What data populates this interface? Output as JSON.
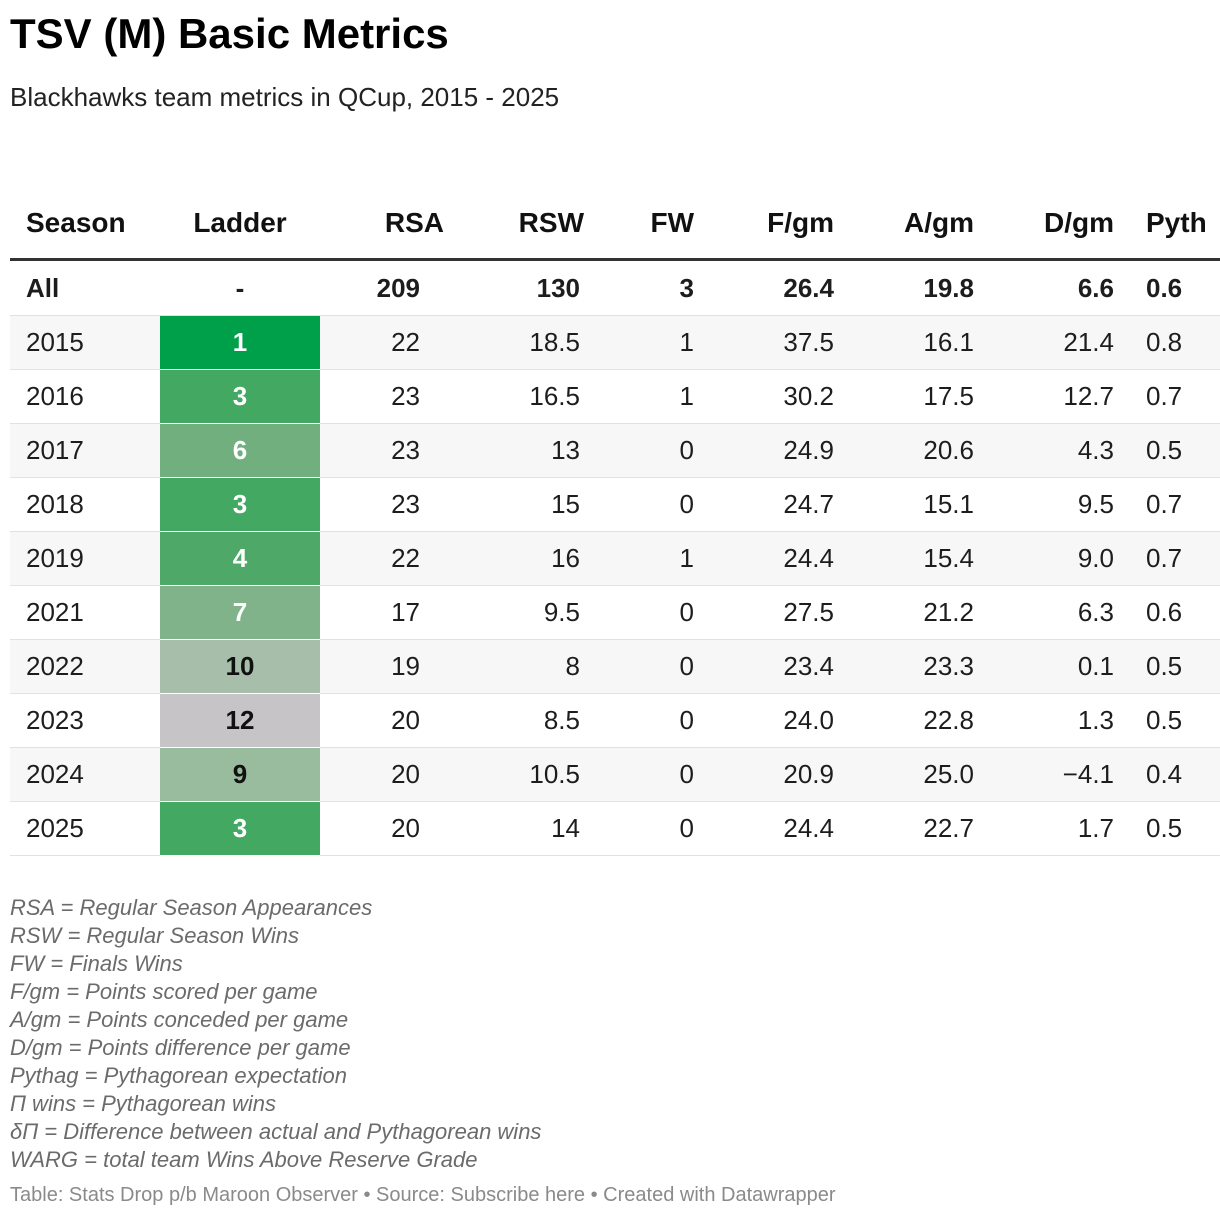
{
  "title": "TSV (M) Basic Metrics",
  "subtitle": "Blackhawks team metrics in QCup, 2015 - 2025",
  "table": {
    "columns": [
      "Season",
      "Ladder",
      "RSA",
      "RSW",
      "FW",
      "F/gm",
      "A/gm",
      "D/gm",
      "Pyth"
    ],
    "all_row": [
      "All",
      "-",
      "209",
      "130",
      "3",
      "26.4",
      "19.8",
      "6.6",
      "0.6"
    ],
    "rows": [
      {
        "season": "2015",
        "ladder": "1",
        "rsa": "22",
        "rsw": "18.5",
        "fw": "1",
        "f": "37.5",
        "a": "16.1",
        "d": "21.4",
        "p": "0.8",
        "ladder_bg": "#00a04b",
        "ladder_fg": "#ffffff"
      },
      {
        "season": "2016",
        "ladder": "3",
        "rsa": "23",
        "rsw": "16.5",
        "fw": "1",
        "f": "30.2",
        "a": "17.5",
        "d": "12.7",
        "p": "0.7",
        "ladder_bg": "#42a862",
        "ladder_fg": "#ffffff"
      },
      {
        "season": "2017",
        "ladder": "6",
        "rsa": "23",
        "rsw": "13",
        "fw": "0",
        "f": "24.9",
        "a": "20.6",
        "d": "4.3",
        "p": "0.5",
        "ladder_bg": "#72af7e",
        "ladder_fg": "#ffffff"
      },
      {
        "season": "2018",
        "ladder": "3",
        "rsa": "23",
        "rsw": "15",
        "fw": "0",
        "f": "24.7",
        "a": "15.1",
        "d": "9.5",
        "p": "0.7",
        "ladder_bg": "#42a862",
        "ladder_fg": "#ffffff"
      },
      {
        "season": "2019",
        "ladder": "4",
        "rsa": "22",
        "rsw": "16",
        "fw": "1",
        "f": "24.4",
        "a": "15.4",
        "d": "9.0",
        "p": "0.7",
        "ladder_bg": "#4ea969",
        "ladder_fg": "#ffffff"
      },
      {
        "season": "2021",
        "ladder": "7",
        "rsa": "17",
        "rsw": "9.5",
        "fw": "0",
        "f": "27.5",
        "a": "21.2",
        "d": "6.3",
        "p": "0.6",
        "ladder_bg": "#80b38a",
        "ladder_fg": "#ffffff"
      },
      {
        "season": "2022",
        "ladder": "10",
        "rsa": "19",
        "rsw": "8",
        "fw": "0",
        "f": "23.4",
        "a": "23.3",
        "d": "0.1",
        "p": "0.5",
        "ladder_bg": "#a7bfaa",
        "ladder_fg": "#111111"
      },
      {
        "season": "2023",
        "ladder": "12",
        "rsa": "20",
        "rsw": "8.5",
        "fw": "0",
        "f": "24.0",
        "a": "22.8",
        "d": "1.3",
        "p": "0.5",
        "ladder_bg": "#c6c4c6",
        "ladder_fg": "#111111"
      },
      {
        "season": "2024",
        "ladder": "9",
        "rsa": "20",
        "rsw": "10.5",
        "fw": "0",
        "f": "20.9",
        "a": "25.0",
        "d": "−4.1",
        "p": "0.4",
        "ladder_bg": "#99bc9e",
        "ladder_fg": "#111111"
      },
      {
        "season": "2025",
        "ladder": "3",
        "rsa": "20",
        "rsw": "14",
        "fw": "0",
        "f": "24.4",
        "a": "22.7",
        "d": "1.7",
        "p": "0.5",
        "ladder_bg": "#42a862",
        "ladder_fg": "#ffffff"
      }
    ]
  },
  "notes": [
    "RSA = Regular Season Appearances",
    "RSW = Regular Season Wins",
    "FW = Finals Wins",
    "F/gm = Points scored per game",
    "A/gm = Points conceded per game",
    "D/gm = Points difference per game",
    "Pythag = Pythagorean expectation",
    "Π wins = Pythagorean wins",
    "δΠ = Difference between actual and Pythagorean wins",
    "WARG = total team Wins Above Reserve Grade"
  ],
  "footer": "Table: Stats Drop p/b Maroon Observer • Source: Subscribe here • Created with Datawrapper"
}
